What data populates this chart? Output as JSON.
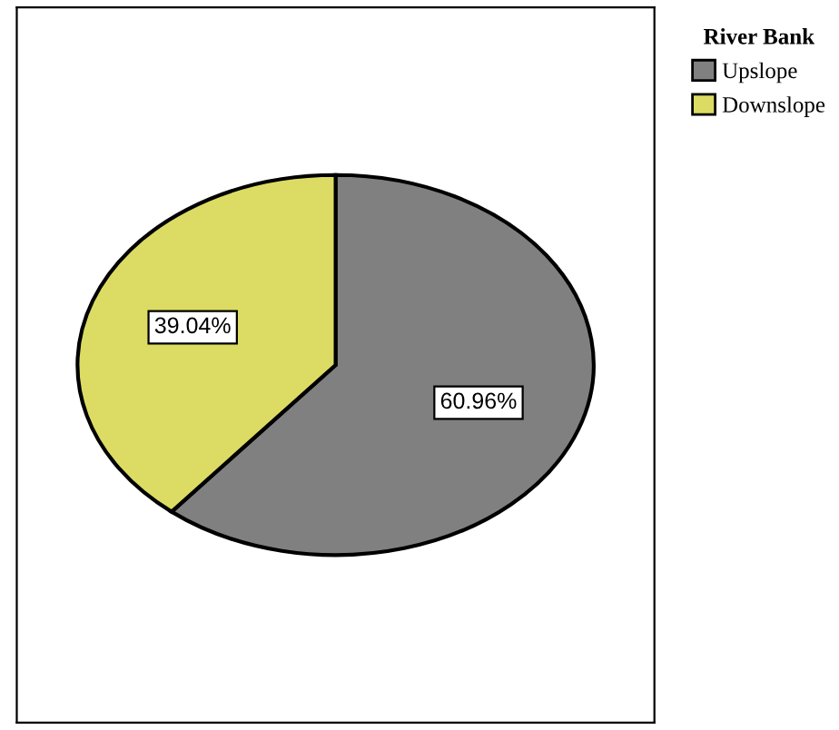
{
  "chart_data": {
    "type": "pie",
    "legend_title": "River Bank",
    "categories": [
      "Upslope",
      "Downslope"
    ],
    "values": [
      60.96,
      39.04
    ],
    "colors": [
      "#808080",
      "#dcdc64"
    ],
    "value_labels": [
      "60.96%",
      "39.04%"
    ],
    "legend": "top right"
  }
}
